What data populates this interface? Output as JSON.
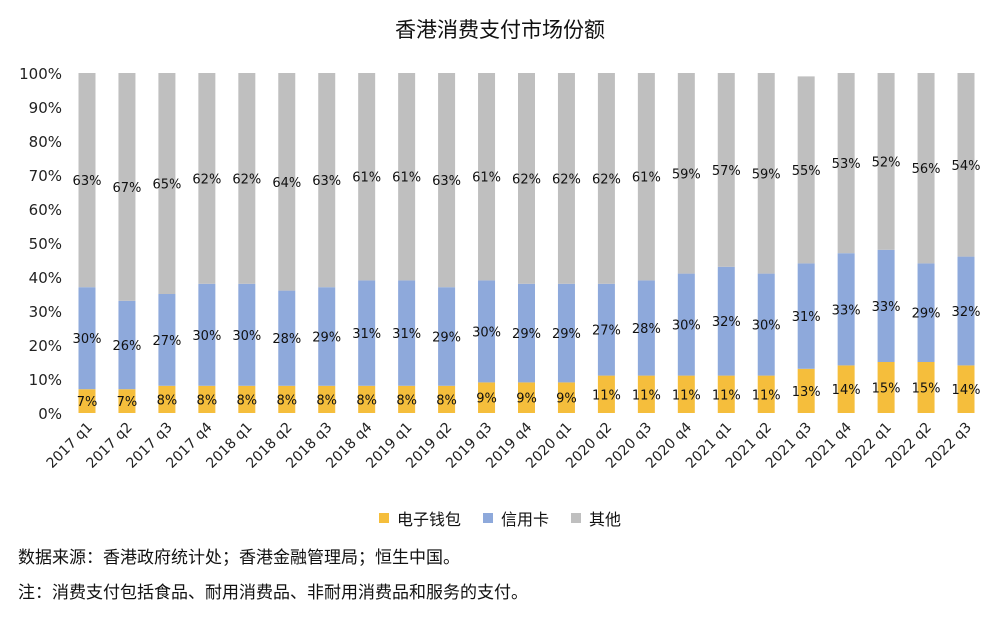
{
  "chart_data": {
    "type": "bar",
    "stacked": true,
    "title": "香港消费支付市场份额",
    "categories": [
      "2017 q1",
      "2017 q2",
      "2017 q3",
      "2017 q4",
      "2018 q1",
      "2018 q2",
      "2018 q3",
      "2018 q4",
      "2019 q1",
      "2019 q2",
      "2019 q3",
      "2019 q4",
      "2020 q1",
      "2020 q2",
      "2020 q3",
      "2020 q4",
      "2021 q1",
      "2021 q2",
      "2021 q3",
      "2021 q4",
      "2022 q1",
      "2022 q2",
      "2022 q3"
    ],
    "series": [
      {
        "name": "电子钱包",
        "color": "#F5BE3C",
        "values": [
          7,
          7,
          8,
          8,
          8,
          8,
          8,
          8,
          8,
          8,
          9,
          9,
          9,
          11,
          11,
          11,
          11,
          11,
          13,
          14,
          15,
          15,
          14
        ]
      },
      {
        "name": "信用卡",
        "color": "#8EA9DB",
        "values": [
          30,
          26,
          27,
          30,
          30,
          28,
          29,
          31,
          31,
          29,
          30,
          29,
          29,
          27,
          28,
          30,
          32,
          30,
          31,
          33,
          33,
          29,
          32
        ]
      },
      {
        "name": "其他",
        "color": "#BFBFBF",
        "values": [
          63,
          67,
          65,
          62,
          62,
          64,
          63,
          61,
          61,
          63,
          61,
          62,
          62,
          62,
          61,
          59,
          57,
          59,
          55,
          53,
          52,
          56,
          54
        ]
      }
    ],
    "y_ticks": [
      "0%",
      "10%",
      "20%",
      "30%",
      "40%",
      "50%",
      "60%",
      "70%",
      "80%",
      "90%",
      "100%"
    ],
    "ylim": [
      0,
      100
    ],
    "grid": false,
    "legend": "bottom",
    "data_labels": true
  },
  "notes": {
    "source": "数据来源：香港政府统计处；香港金融管理局；恒生中国。",
    "note": "注：消费支付包括食品、耐用消费品、非耐用消费品和服务的支付。"
  }
}
